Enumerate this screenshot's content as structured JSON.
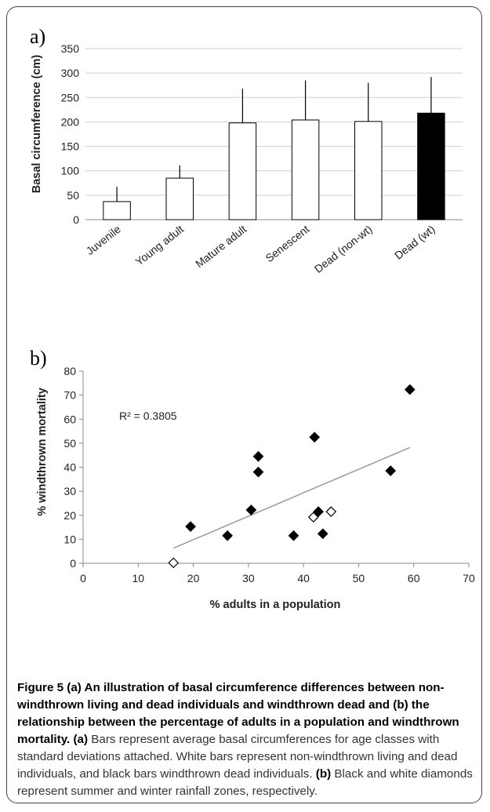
{
  "chart_data": [
    {
      "panel": "a)",
      "type": "bar",
      "categories": [
        "Juvenile",
        "Young adult",
        "Mature adult",
        "Senescent",
        "Dead (non-wt)",
        "Dead (wt)"
      ],
      "values": [
        37,
        85,
        198,
        204,
        201,
        218
      ],
      "error_upper": [
        67,
        111,
        268,
        285,
        280,
        292
      ],
      "bar_colors": [
        "#ffffff",
        "#ffffff",
        "#ffffff",
        "#ffffff",
        "#ffffff",
        "#000000"
      ],
      "ylabel": "Basal circumference (cm)",
      "xlabel": "",
      "ylim": [
        0,
        350
      ],
      "yticks": [
        0,
        50,
        100,
        150,
        200,
        250,
        300,
        350
      ],
      "grid": "horizontal"
    },
    {
      "panel": "b)",
      "type": "scatter",
      "series": [
        {
          "marker": "filled-diamond",
          "x": [
            19.5,
            26.2,
            30.5,
            31.8,
            31.8,
            38.2,
            42.0,
            42.7,
            43.5,
            55.8,
            59.3
          ],
          "y": [
            15.3,
            11.5,
            22.2,
            44.5,
            38.0,
            11.5,
            52.5,
            21.5,
            12.3,
            38.5,
            72.3
          ]
        },
        {
          "marker": "open-diamond",
          "x": [
            16.4,
            41.8,
            45.0
          ],
          "y": [
            0.2,
            19.2,
            21.5
          ]
        }
      ],
      "trendline": {
        "x": [
          16.4,
          59.3
        ],
        "y": [
          6.3,
          48.2
        ]
      },
      "annotation": "R² = 0.3805",
      "xlabel": "% adults in a population",
      "ylabel": "% windthrown mortality",
      "xlim": [
        0,
        70
      ],
      "ylim": [
        0,
        80
      ],
      "xticks": [
        0,
        10,
        20,
        30,
        40,
        50,
        60,
        70
      ],
      "yticks": [
        0,
        10,
        20,
        30,
        40,
        50,
        60,
        70,
        80
      ],
      "grid": "none"
    }
  ],
  "caption": {
    "bold_lead": "Figure 5 (a) An illustration of basal circumference differences between non-windthrown living and dead individuals and windthrown dead and (b) the relationship between the percentage of adults in a population and windthrown mortality.",
    "a_tag": "(a)",
    "a_text": "Bars represent average basal circumferences for age classes with standard deviations attached. White bars represent non-windthrown living and dead individuals, and black bars windthrown dead individuals.",
    "b_tag": "(b)",
    "b_text": "Black and white diamonds represent summer and winter rainfall zones, respectively."
  }
}
